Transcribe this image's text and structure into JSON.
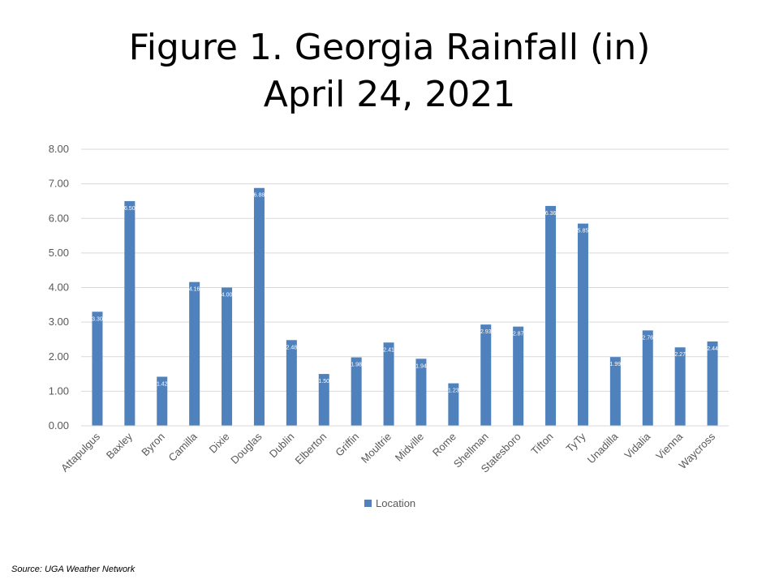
{
  "slide": {
    "title_line1": "Figure 1. Georgia Rainfall (in)",
    "title_line2": "April 24, 2021",
    "source": "Source:  UGA Weather Network"
  },
  "colors": {
    "bar": "#4f81bd",
    "grid": "#d9d9d9",
    "axis_text": "#595959",
    "bar_label": "#ffffff"
  },
  "chart_data": {
    "type": "bar",
    "categories": [
      "Attapulgus",
      "Baxley",
      "Byron",
      "Camilla",
      "Dixie",
      "Douglas",
      "Dublin",
      "Elberton",
      "Griffin",
      "Moultrie",
      "Midville",
      "Rome",
      "Shellman",
      "Statesboro",
      "Tifton",
      "TyTy",
      "Unadilla",
      "Vidalia",
      "Vienna",
      "Waycross"
    ],
    "series": [
      {
        "name": "Location",
        "values": [
          3.3,
          6.5,
          1.42,
          4.16,
          4.0,
          6.88,
          2.48,
          1.5,
          1.98,
          2.41,
          1.94,
          1.23,
          2.93,
          2.87,
          6.36,
          5.85,
          1.99,
          2.76,
          2.27,
          2.44
        ],
        "labels": [
          "3.30",
          "6.50",
          "1.42",
          "4.16",
          "4.00",
          "6.88",
          "2.48",
          "1.50",
          "1.98",
          "2.41",
          "1.94",
          "1.23",
          "2.93",
          "2.87",
          "6.36",
          "5.85",
          "1.99",
          "2.76",
          "2.27",
          "2.44"
        ]
      }
    ],
    "ylim": [
      0,
      8
    ],
    "y_ticks": [
      "0.00",
      "1.00",
      "2.00",
      "3.00",
      "4.00",
      "5.00",
      "6.00",
      "7.00",
      "8.00"
    ],
    "grid": true,
    "legend_position": "bottom"
  }
}
